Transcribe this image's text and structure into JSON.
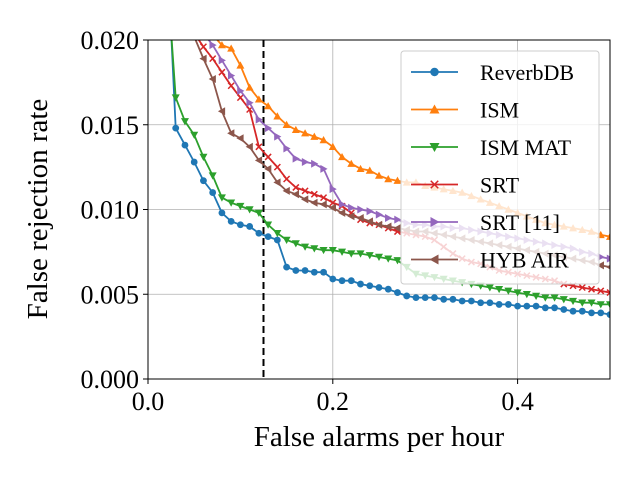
{
  "chart_data": {
    "type": "line",
    "xlabel": "False alarms per hour",
    "ylabel": "False rejection rate",
    "xlim": [
      0.0,
      0.5
    ],
    "ylim": [
      0.0,
      0.02
    ],
    "xticks": [
      "0.0",
      "0.2",
      "0.4"
    ],
    "xtick_values": [
      0.0,
      0.2,
      0.4
    ],
    "yticks": [
      "0.000",
      "0.005",
      "0.010",
      "0.015",
      "0.020"
    ],
    "ytick_values": [
      0.0,
      0.005,
      0.01,
      0.015,
      0.02
    ],
    "grid": true,
    "legend_position": "top-right",
    "reference_line": {
      "axis": "x",
      "value": 0.125,
      "style": "dashed",
      "color": "#000000"
    },
    "series": [
      {
        "name": "ReverbDB",
        "color": "#1f77b4",
        "marker": "circle",
        "x": [
          0.025,
          0.03,
          0.04,
          0.05,
          0.06,
          0.07,
          0.08,
          0.09,
          0.1,
          0.11,
          0.12,
          0.13,
          0.14,
          0.15,
          0.16,
          0.17,
          0.18,
          0.19,
          0.2,
          0.21,
          0.22,
          0.23,
          0.24,
          0.25,
          0.26,
          0.27,
          0.28,
          0.29,
          0.3,
          0.31,
          0.32,
          0.33,
          0.34,
          0.35,
          0.36,
          0.37,
          0.38,
          0.39,
          0.4,
          0.41,
          0.42,
          0.43,
          0.44,
          0.45,
          0.46,
          0.47,
          0.48,
          0.49,
          0.5
        ],
        "y": [
          0.0205,
          0.0148,
          0.0138,
          0.0128,
          0.0117,
          0.011,
          0.0098,
          0.0093,
          0.0091,
          0.009,
          0.0086,
          0.0084,
          0.0082,
          0.0066,
          0.0064,
          0.0064,
          0.0063,
          0.0063,
          0.0059,
          0.0058,
          0.0058,
          0.0056,
          0.0055,
          0.0054,
          0.0053,
          0.0051,
          0.0049,
          0.0048,
          0.0048,
          0.0048,
          0.0047,
          0.0047,
          0.0046,
          0.0046,
          0.0045,
          0.0045,
          0.0044,
          0.0044,
          0.0043,
          0.0043,
          0.0043,
          0.0042,
          0.0042,
          0.0041,
          0.004,
          0.004,
          0.0039,
          0.0039,
          0.0038
        ]
      },
      {
        "name": "ISM",
        "color": "#ff7f0e",
        "marker": "triangle-up",
        "x": [
          0.07,
          0.08,
          0.09,
          0.1,
          0.11,
          0.12,
          0.13,
          0.14,
          0.15,
          0.16,
          0.17,
          0.18,
          0.19,
          0.2,
          0.21,
          0.22,
          0.23,
          0.24,
          0.25,
          0.26,
          0.27,
          0.28,
          0.29,
          0.3,
          0.31,
          0.32,
          0.33,
          0.34,
          0.35,
          0.36,
          0.37,
          0.38,
          0.39,
          0.4,
          0.41,
          0.42,
          0.43,
          0.44,
          0.45,
          0.46,
          0.47,
          0.48,
          0.49,
          0.5
        ],
        "y": [
          0.0203,
          0.0197,
          0.0195,
          0.0185,
          0.0172,
          0.0165,
          0.0161,
          0.0155,
          0.015,
          0.0147,
          0.0145,
          0.0143,
          0.0141,
          0.0137,
          0.0131,
          0.0127,
          0.0124,
          0.0123,
          0.012,
          0.0118,
          0.0117,
          0.0116,
          0.0116,
          0.0114,
          0.0113,
          0.0112,
          0.0111,
          0.011,
          0.0108,
          0.0106,
          0.0104,
          0.0102,
          0.01,
          0.0098,
          0.0096,
          0.0094,
          0.0092,
          0.0091,
          0.009,
          0.0089,
          0.0088,
          0.0087,
          0.0085,
          0.0084
        ]
      },
      {
        "name": "ISM MAT",
        "color": "#2ca02c",
        "marker": "triangle-down",
        "x": [
          0.025,
          0.03,
          0.04,
          0.05,
          0.06,
          0.07,
          0.08,
          0.09,
          0.1,
          0.11,
          0.12,
          0.13,
          0.14,
          0.15,
          0.16,
          0.17,
          0.18,
          0.19,
          0.2,
          0.21,
          0.22,
          0.23,
          0.24,
          0.25,
          0.26,
          0.27,
          0.28,
          0.29,
          0.3,
          0.31,
          0.32,
          0.33,
          0.34,
          0.35,
          0.36,
          0.37,
          0.38,
          0.39,
          0.4,
          0.41,
          0.42,
          0.43,
          0.44,
          0.45,
          0.46,
          0.47,
          0.48,
          0.49,
          0.5
        ],
        "y": [
          0.0205,
          0.0166,
          0.0152,
          0.0144,
          0.0131,
          0.012,
          0.0107,
          0.0104,
          0.0102,
          0.01,
          0.0098,
          0.0091,
          0.0086,
          0.0082,
          0.008,
          0.0078,
          0.0077,
          0.0076,
          0.0076,
          0.0075,
          0.0074,
          0.0074,
          0.0073,
          0.0072,
          0.0071,
          0.007,
          0.0066,
          0.0062,
          0.0061,
          0.006,
          0.0059,
          0.0058,
          0.0057,
          0.0056,
          0.0055,
          0.0054,
          0.0053,
          0.0052,
          0.0051,
          0.005,
          0.0049,
          0.0048,
          0.0048,
          0.0047,
          0.0046,
          0.0045,
          0.0045,
          0.0044,
          0.0044
        ]
      },
      {
        "name": "SRT",
        "color": "#d62728",
        "marker": "x",
        "x": [
          0.05,
          0.06,
          0.07,
          0.08,
          0.09,
          0.1,
          0.11,
          0.12,
          0.13,
          0.14,
          0.15,
          0.16,
          0.17,
          0.18,
          0.19,
          0.2,
          0.21,
          0.22,
          0.23,
          0.24,
          0.25,
          0.26,
          0.27,
          0.28,
          0.29,
          0.3,
          0.31,
          0.32,
          0.33,
          0.34,
          0.35,
          0.36,
          0.37,
          0.38,
          0.39,
          0.4,
          0.41,
          0.42,
          0.43,
          0.44,
          0.45,
          0.46,
          0.47,
          0.48,
          0.49,
          0.5
        ],
        "y": [
          0.0204,
          0.0196,
          0.0189,
          0.0181,
          0.0173,
          0.0166,
          0.0159,
          0.0137,
          0.0131,
          0.0125,
          0.0118,
          0.0113,
          0.0111,
          0.0109,
          0.0107,
          0.0104,
          0.0102,
          0.0098,
          0.0094,
          0.0092,
          0.0091,
          0.0089,
          0.0087,
          0.0086,
          0.0085,
          0.0084,
          0.0082,
          0.0078,
          0.0074,
          0.0071,
          0.0069,
          0.0068,
          0.0066,
          0.0064,
          0.0063,
          0.0062,
          0.0061,
          0.006,
          0.0059,
          0.0058,
          0.0056,
          0.0055,
          0.0054,
          0.0053,
          0.0052,
          0.0051
        ]
      },
      {
        "name": "SRT [11]",
        "color": "#9467bd",
        "marker": "triangle-right",
        "x": [
          0.06,
          0.07,
          0.08,
          0.09,
          0.1,
          0.11,
          0.12,
          0.13,
          0.14,
          0.15,
          0.16,
          0.17,
          0.18,
          0.19,
          0.2,
          0.21,
          0.22,
          0.23,
          0.24,
          0.25,
          0.26,
          0.27,
          0.28,
          0.29,
          0.3,
          0.31,
          0.32,
          0.33,
          0.34,
          0.35,
          0.36,
          0.37,
          0.38,
          0.39,
          0.4,
          0.41,
          0.42,
          0.43,
          0.44,
          0.45,
          0.46,
          0.47,
          0.48,
          0.49,
          0.5
        ],
        "y": [
          0.0204,
          0.0197,
          0.0188,
          0.0179,
          0.017,
          0.0163,
          0.0153,
          0.0148,
          0.0143,
          0.0136,
          0.013,
          0.0128,
          0.0127,
          0.0124,
          0.0112,
          0.0103,
          0.0101,
          0.01,
          0.0099,
          0.0097,
          0.0095,
          0.0094,
          0.0092,
          0.0091,
          0.0091,
          0.009,
          0.009,
          0.0089,
          0.0089,
          0.0088,
          0.0087,
          0.0086,
          0.0085,
          0.0084,
          0.0083,
          0.0082,
          0.0081,
          0.008,
          0.0079,
          0.0078,
          0.0077,
          0.0075,
          0.0074,
          0.0072,
          0.0071
        ]
      },
      {
        "name": "HYB AIR",
        "color": "#8c564b",
        "marker": "triangle-left",
        "x": [
          0.05,
          0.06,
          0.07,
          0.08,
          0.09,
          0.1,
          0.11,
          0.12,
          0.13,
          0.14,
          0.15,
          0.16,
          0.17,
          0.18,
          0.19,
          0.2,
          0.21,
          0.22,
          0.23,
          0.24,
          0.25,
          0.26,
          0.27,
          0.28,
          0.29,
          0.3,
          0.31,
          0.32,
          0.33,
          0.34,
          0.35,
          0.36,
          0.37,
          0.38,
          0.39,
          0.4,
          0.41,
          0.42,
          0.43,
          0.44,
          0.45,
          0.46,
          0.47,
          0.48,
          0.49,
          0.5
        ],
        "y": [
          0.0202,
          0.0189,
          0.0177,
          0.0158,
          0.0145,
          0.0142,
          0.0137,
          0.0129,
          0.0124,
          0.0116,
          0.0111,
          0.0109,
          0.0106,
          0.0104,
          0.0103,
          0.0101,
          0.0098,
          0.0096,
          0.0095,
          0.0093,
          0.0091,
          0.009,
          0.0089,
          0.0088,
          0.0087,
          0.0087,
          0.0086,
          0.0085,
          0.0084,
          0.0083,
          0.0082,
          0.0081,
          0.008,
          0.0079,
          0.0078,
          0.0077,
          0.0076,
          0.0075,
          0.0074,
          0.0073,
          0.0072,
          0.0071,
          0.007,
          0.0069,
          0.0067,
          0.0066
        ]
      }
    ]
  }
}
